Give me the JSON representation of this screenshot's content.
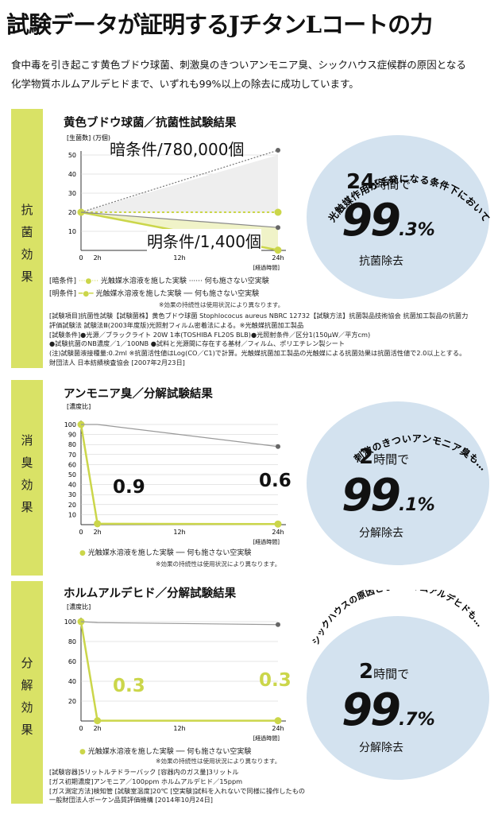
{
  "title": "試験データが証明するJチタンLコートの力",
  "intro": {
    "line1": "食中毒を引き起こす黄色ブドウ球菌、刺激臭のきついアンモニア臭、シックハウス症候群の原因となる",
    "line2": "化学物質ホルムアルデヒドまで、いずれも99%以上の除去に成功しています。"
  },
  "sections": [
    {
      "band_label": "抗菌効果",
      "title": "黄色ブドウ球菌／抗菌性試験結果",
      "y_unit": "[生菌数] (万個)",
      "x_unit": "[経過時間]",
      "dark_label": "暗条件/780,000個",
      "light_label": "明条件/1,400個",
      "legend_dark_prefix": "[暗条件]",
      "legend_light_prefix": "[明条件]",
      "legend_with": "光触媒水溶液を施した実験",
      "legend_without": "何も施さない空実験",
      "note": "※効果の持続性は使用状況により異なります。",
      "arc_text": "光触媒作用が活発になる条件下において",
      "hours": "24",
      "hours_unit": "時間で",
      "pct_main": "99",
      "pct_frac": ".3%",
      "result": "抗菌除去",
      "footnotes": [
        "[試験項目]抗菌性試験【試験菌株】黄色ブドウ球菌 Stophlococus aureus NBRC 12732【試験方法】抗菌製品技術協会 抗菌加工製品の抗菌力",
        "評価試験法 試験法Ⅲ(2003年度版)光照射フィルム密着法による。※光触媒抗菌加工製品",
        "[試験条件]●光源／ブラックライト 20W 1本(TOSHIBA FL20S BLB)●光照射条件／区分1(150μW／平方cm)",
        "●試験抗菌のNB濃度／1／100NB ●試料と光源間に存在する基材／フィルム、ポリエチレン製シート",
        "(注)試験菌液接種量:0.2ml ※抗菌活性値はLog(CO／C1)で計算。光触媒抗菌加工製品の光触媒による抗菌効果は抗菌活性値で2.0以上とする。",
        "財団法人 日本紡績検査協会 [2007年2月23日]"
      ]
    },
    {
      "band_label": "消臭効果",
      "title": "アンモニア臭／分解試験結果",
      "y_unit": "[濃度比]",
      "x_unit": "[経過時間]",
      "label_2h": "0.9",
      "label_24h": "0.6",
      "legend_with": "光触媒水溶液を施した実験",
      "legend_without": "何も施さない空実験",
      "note": "※効果の持続性は使用状況により異なります。",
      "arc_text": "刺激のきついアンモニア臭も…",
      "hours": "2",
      "hours_unit": "時間で",
      "pct_main": "99",
      "pct_frac": ".1%",
      "result": "分解除去"
    },
    {
      "band_label": "分解効果",
      "title": "ホルムアルデヒド／分解試験結果",
      "y_unit": "[濃度比]",
      "x_unit": "[経過時間]",
      "label_2h": "0.3",
      "label_24h": "0.3",
      "legend_with": "光触媒水溶液を施した実験",
      "legend_without": "何も施さない空実験",
      "note": "※効果の持続性は使用状況により異なります。",
      "arc_text": "シックハウスの原因となるホルムアルデヒドも…",
      "hours": "2",
      "hours_unit": "時間で",
      "pct_main": "99",
      "pct_frac": ".7%",
      "result": "分解除去",
      "footnotes": [
        "[試験容器]5リットルテドラーバック [容器内のガス量]3リットル",
        "[ガス初期濃度]アンモニア／100ppm ホルムアルデヒド／15ppm",
        "[ガス測定方法]検知管 [試験室温度]20℃ [空実験]試料を入れないで同様に操作したもの",
        "一般財団法人ボーケン品質評価機構 [2014年10月24日]"
      ]
    }
  ],
  "colors": {
    "accent": "#cbd64a",
    "band": "#d9e266",
    "circle": "#d3e2ef",
    "grid": "#cccccc",
    "control": "#999999"
  },
  "chart_data": [
    {
      "type": "line",
      "title": "黄色ブドウ球菌／抗菌性試験結果",
      "xlabel": "[経過時間]",
      "ylabel": "[生菌数] (万個)",
      "x": [
        0,
        24
      ],
      "x_ticks": [
        "0",
        "2h",
        "12h",
        "24h"
      ],
      "y_ticks": [
        10,
        20,
        30,
        40,
        50
      ],
      "ylim": [
        0,
        50
      ],
      "series": [
        {
          "name": "[暗条件] 光触媒水溶液を施した実験",
          "x": [
            0,
            24
          ],
          "values": [
            20,
            20
          ]
        },
        {
          "name": "[暗条件] 何も施さない空実験",
          "x": [
            0,
            24
          ],
          "values": [
            20,
            78
          ]
        },
        {
          "name": "[明条件] 光触媒水溶液を施した実験",
          "x": [
            0,
            24
          ],
          "values": [
            20,
            0.14
          ]
        },
        {
          "name": "[明条件] 何も施さない空実験",
          "x": [
            0,
            24
          ],
          "values": [
            20,
            12
          ]
        }
      ]
    },
    {
      "type": "line",
      "title": "アンモニア臭／分解試験結果",
      "xlabel": "[経過時間]",
      "ylabel": "[濃度比]",
      "x_ticks": [
        "0",
        "2h",
        "12h",
        "24h"
      ],
      "y_ticks": [
        10,
        20,
        30,
        40,
        50,
        60,
        70,
        80,
        90,
        100
      ],
      "ylim": [
        0,
        100
      ],
      "series": [
        {
          "name": "光触媒水溶液を施した実験",
          "x": [
            0,
            2,
            24
          ],
          "values": [
            100,
            0.9,
            0.6
          ]
        },
        {
          "name": "何も施さない空実験",
          "x": [
            0,
            2,
            24
          ],
          "values": [
            100,
            100,
            78
          ]
        }
      ]
    },
    {
      "type": "line",
      "title": "ホルムアルデヒド／分解試験結果",
      "xlabel": "[経過時間]",
      "ylabel": "[濃度比]",
      "x_ticks": [
        "0",
        "2h",
        "12h",
        "24h"
      ],
      "y_ticks": [
        20,
        40,
        60,
        80,
        100
      ],
      "ylim": [
        0,
        100
      ],
      "series": [
        {
          "name": "光触媒水溶液を施した実験",
          "x": [
            0,
            2,
            24
          ],
          "values": [
            100,
            0.3,
            0.3
          ]
        },
        {
          "name": "何も施さない空実験",
          "x": [
            0,
            2,
            24
          ],
          "values": [
            100,
            99,
            97
          ]
        }
      ]
    }
  ]
}
